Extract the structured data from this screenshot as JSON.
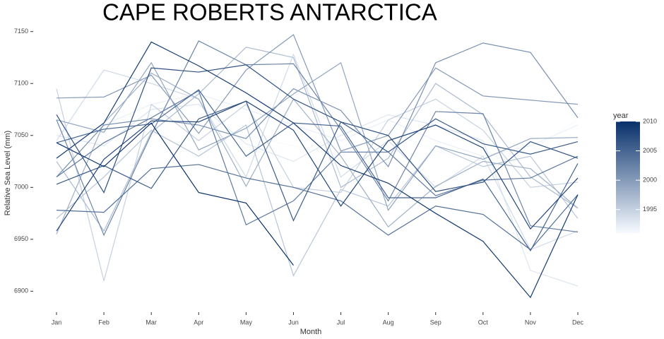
{
  "chart_data": {
    "type": "line",
    "title": "CAPE ROBERTS ANTARCTICA",
    "x_label": "Month",
    "y_label": "Relative Sea Level (mm)",
    "legend_title": "year",
    "categories": [
      "Jan",
      "Feb",
      "Mar",
      "Apr",
      "May",
      "Jun",
      "Jul",
      "Aug",
      "Sep",
      "Oct",
      "Nov",
      "Dec"
    ],
    "ylim": [
      6888,
      7160
    ],
    "yticks": [
      6900,
      6950,
      7000,
      7050,
      7100,
      7150
    ],
    "color_low": "#f7fbff",
    "color_high": "#08306b",
    "color_range": [
      1991,
      2010
    ],
    "color_ticks": [
      1995,
      2000,
      2005,
      2010
    ],
    "series": [
      {
        "year": 1991,
        "values": [
          7045,
          7065,
          7070,
          7060,
          7050,
          7040,
          7030,
          7055,
          7035,
          7025,
          7035,
          7065
        ]
      },
      {
        "year": 1992,
        "values": [
          7040,
          7060,
          7080,
          7090,
          7075,
          7060,
          7045,
          7065,
          7045,
          7030,
          7040,
          7060
        ]
      },
      {
        "year": 1993,
        "values": [
          7050,
          7040,
          7075,
          7080,
          7042,
          7025,
          7050,
          7070,
          7060,
          7045,
          6920,
          6905
        ]
      },
      {
        "year": 1994,
        "values": [
          7045,
          7113,
          7100,
          7085,
          7010,
          7128,
          7010,
          7045,
          7000,
          7030,
          6940,
          6958
        ]
      },
      {
        "year": 1995,
        "values": [
          7095,
          6910,
          7080,
          7045,
          7080,
          7000,
          6995,
          7065,
          7085,
          7055,
          7000,
          7005
        ]
      },
      {
        "year": 1996,
        "values": [
          6970,
          7010,
          7055,
          7030,
          7060,
          6915,
          6998,
          6982,
          7040,
          7020,
          7030,
          6970
        ]
      },
      {
        "year": 1997,
        "values": [
          7025,
          6958,
          7053,
          7090,
          7135,
          7125,
          7000,
          7028,
          7100,
          7070,
          7010,
          6980
        ]
      },
      {
        "year": 1998,
        "values": [
          6955,
          7062,
          7110,
          7085,
          7001,
          7085,
          7030,
          6962,
          7001,
          7025,
          7018,
          6980
        ]
      },
      {
        "year": 1999,
        "values": [
          7065,
          7053,
          7120,
          7036,
          7057,
          7090,
          7120,
          6978,
          7040,
          7027,
          7047,
          7048
        ]
      },
      {
        "year": 2000,
        "values": [
          7086,
          7087,
          7108,
          7052,
          7113,
          7147,
          7035,
          7050,
          7115,
          7088,
          7084,
          7080
        ]
      },
      {
        "year": 2001,
        "values": [
          7010,
          7060,
          7066,
          7060,
          7047,
          7095,
          7074,
          7020,
          7120,
          7139,
          7130,
          7067
        ]
      },
      {
        "year": 2002,
        "values": [
          7065,
          6954,
          7051,
          7141,
          7118,
          7119,
          7056,
          6987,
          7073,
          7071,
          6963,
          6957
        ]
      },
      {
        "year": 2003,
        "values": [
          7010,
          7043,
          7067,
          7093,
          6964,
          6987,
          7034,
          7034,
          6992,
          7007,
          7009,
          7030
        ]
      },
      {
        "year": 2004,
        "values": [
          6978,
          6976,
          7018,
          7022,
          7009,
          7000,
          6987,
          6954,
          6982,
          6974,
          6940,
          6993
        ]
      },
      {
        "year": 2005,
        "values": [
          7043,
          7056,
          7061,
          7094,
          7030,
          7062,
          7059,
          6990,
          6990,
          7008,
          6939,
          7023
        ]
      },
      {
        "year": 2006,
        "values": [
          7003,
          7021,
          6999,
          7066,
          7083,
          6968,
          7063,
          7034,
          7066,
          7042,
          7032,
          7044
        ]
      },
      {
        "year": 2007,
        "values": [
          7070,
          6995,
          7115,
          7111,
          7118,
          7085,
          7063,
          7050,
          6996,
          7005,
          7044,
          7028
        ]
      },
      {
        "year": 2008,
        "values": [
          6958,
          7027,
          7064,
          7063,
          7083,
          7055,
          6982,
          7045,
          7060,
          7038,
          6960,
          7009
        ]
      },
      {
        "year": 2009,
        "values": [
          7028,
          7062,
          7140,
          7117,
          7091,
          7062,
          7021,
          7004,
          6975,
          6948,
          6894,
          6993
        ]
      },
      {
        "year": 2010,
        "values": [
          7043,
          7020,
          7062,
          6995,
          6985,
          6925,
          null,
          null,
          null,
          null,
          null,
          null
        ]
      }
    ]
  }
}
